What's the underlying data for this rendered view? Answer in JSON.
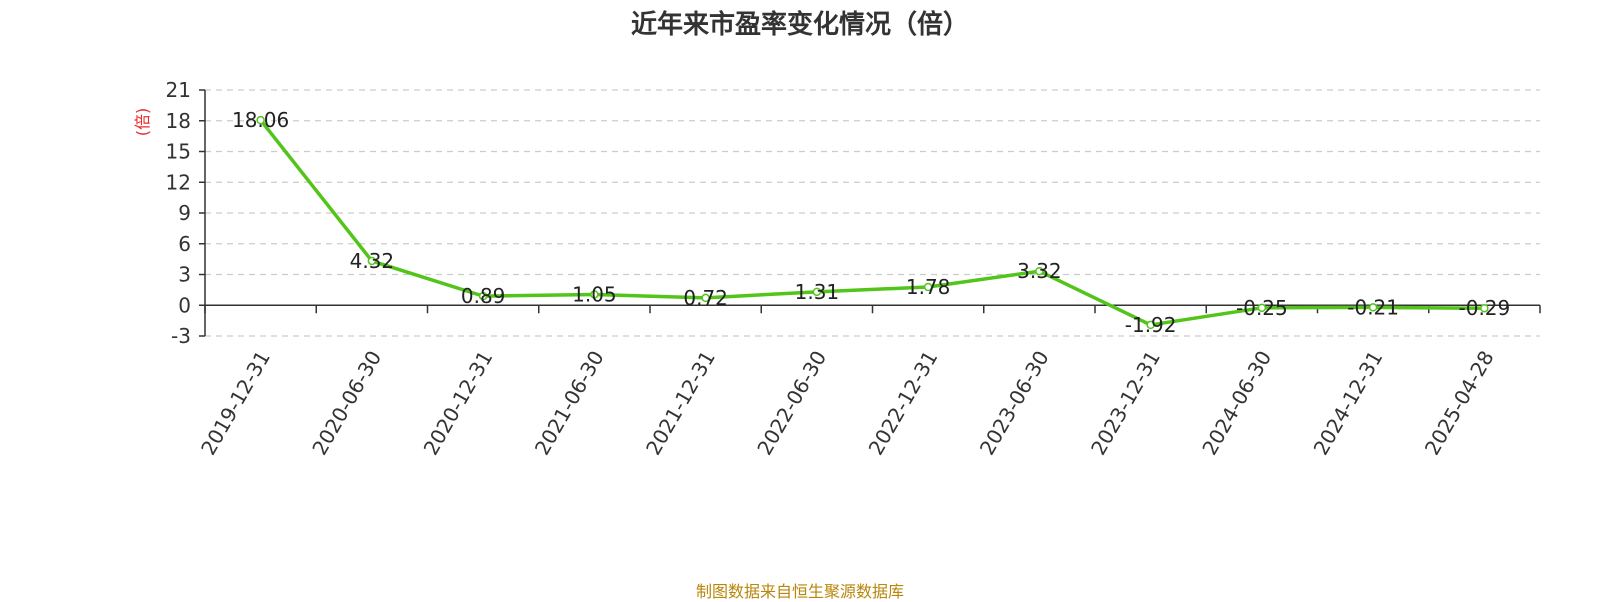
{
  "title": "近年来市盈率变化情况（倍）",
  "source": "制图数据来自恒生聚源数据库",
  "chart_data": {
    "type": "line",
    "title": "近年来市盈率变化情况（倍）",
    "ylabel": "(倍)",
    "xlabel": "",
    "ylim": [
      -3,
      21
    ],
    "yticks": [
      -3,
      0,
      3,
      6,
      9,
      12,
      15,
      18,
      21
    ],
    "grid": true,
    "categories": [
      "2019-12-31",
      "2020-06-30",
      "2020-12-31",
      "2021-06-30",
      "2021-12-31",
      "2022-06-30",
      "2022-12-31",
      "2023-06-30",
      "2023-12-31",
      "2024-06-30",
      "2024-12-31",
      "2025-04-28"
    ],
    "series": [
      {
        "values": [
          18.06,
          4.32,
          0.89,
          1.05,
          0.72,
          1.31,
          1.78,
          3.32,
          -1.92,
          -0.25,
          -0.21,
          -0.29
        ],
        "labels": [
          "18.06",
          "4.32",
          "0.89",
          "1.05",
          "0.72",
          "1.31",
          "1.78",
          "3.32",
          "-1.92",
          "-0.25",
          "-0.21",
          "-0.29"
        ],
        "color": "#52c41a"
      }
    ],
    "colors": {
      "line": "#52c41a",
      "unit": "#e8282b",
      "grid": "#cccccc",
      "axis": "#333333"
    }
  }
}
